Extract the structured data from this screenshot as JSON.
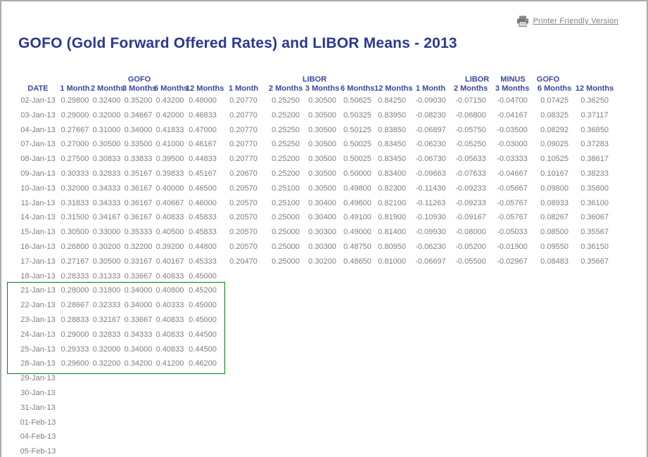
{
  "page": {
    "title": "GOFO (Gold Forward Offered Rates) and LIBOR Means - 2013",
    "printer_link_label": "Printer Friendly Version"
  },
  "colors": {
    "title_blue": "#2a3890",
    "header_blue": "#3a46a0",
    "data_gray": "#7f7f7f",
    "link_gray": "#808080",
    "highlight_green": "#0e7e10",
    "page_border_gray": "#aaaaaa"
  },
  "table": {
    "groups": [
      "GOFO",
      "LIBOR",
      "LIBOR MINUS GOFO"
    ],
    "sub_headers": [
      "DATE",
      "1 Month",
      "2 Months",
      "3 Months",
      "6 Months",
      "12 Months",
      "1 Month",
      "2 Months",
      "3 Months",
      "6 Months",
      "12 Months",
      "1 Month",
      "2 Months",
      "3 Months",
      "6 Months",
      "12 Months"
    ],
    "highlight": {
      "start_date": "21-Jan-13",
      "end_date": "28-Jan-13"
    },
    "rows": [
      {
        "date": "02-Jan-13",
        "values": [
          "0.29800",
          "0.32400",
          "0.35200",
          "0.43200",
          "0.48000",
          "0.20770",
          "0.25250",
          "0.30500",
          "0.50625",
          "0.84250",
          "-0.09030",
          "-0.07150",
          "-0.04700",
          "0.07425",
          "0.36250"
        ]
      },
      {
        "date": "03-Jan-13",
        "values": [
          "0.29000",
          "0.32000",
          "0.34667",
          "0.42000",
          "0.46833",
          "0.20770",
          "0.25200",
          "0.30500",
          "0.50325",
          "0.83950",
          "-0.08230",
          "-0.06800",
          "-0.04167",
          "0.08325",
          "0.37117"
        ]
      },
      {
        "date": "04-Jan-13",
        "values": [
          "0.27667",
          "0.31000",
          "0.34000",
          "0.41833",
          "0.47000",
          "0.20770",
          "0.25250",
          "0.30500",
          "0.50125",
          "0.83850",
          "-0.06897",
          "-0.05750",
          "-0.03500",
          "0.08292",
          "0.36850"
        ]
      },
      {
        "date": "07-Jan-13",
        "values": [
          "0.27000",
          "0.30500",
          "0.33500",
          "0.41000",
          "0.46167",
          "0.20770",
          "0.25250",
          "0.30500",
          "0.50025",
          "0.83450",
          "-0.06230",
          "-0.05250",
          "-0.03000",
          "0.09025",
          "0.37283"
        ]
      },
      {
        "date": "08-Jan-13",
        "values": [
          "0.27500",
          "0.30833",
          "0.33833",
          "0.39500",
          "0.44833",
          "0.20770",
          "0.25200",
          "0.30500",
          "0.50025",
          "0.83450",
          "-0.06730",
          "-0.05633",
          "-0.03333",
          "0.10525",
          "0.38617"
        ]
      },
      {
        "date": "09-Jan-13",
        "values": [
          "0.30333",
          "0.32833",
          "0.35167",
          "0.39833",
          "0.45167",
          "0.20670",
          "0.25200",
          "0.30500",
          "0.50000",
          "0.83400",
          "-0.09663",
          "-0.07633",
          "-0.04667",
          "0.10167",
          "0.38233"
        ]
      },
      {
        "date": "10-Jan-13",
        "values": [
          "0.32000",
          "0.34333",
          "0.36167",
          "0.40000",
          "0.46500",
          "0.20570",
          "0.25100",
          "0.30500",
          "0.49800",
          "0.82300",
          "-0.11430",
          "-0.09233",
          "-0.05667",
          "0.09800",
          "0.35800"
        ]
      },
      {
        "date": "11-Jan-13",
        "values": [
          "0.31833",
          "0.34333",
          "0.36167",
          "0.40667",
          "0.46000",
          "0.20570",
          "0.25100",
          "0.30400",
          "0.49600",
          "0.82100",
          "-0.11263",
          "-0.09233",
          "-0.05767",
          "0.08933",
          "0.36100"
        ]
      },
      {
        "date": "14-Jan-13",
        "values": [
          "0.31500",
          "0.34167",
          "0.36167",
          "0.40833",
          "0.45833",
          "0.20570",
          "0.25000",
          "0.30400",
          "0.49100",
          "0.81900",
          "-0.10930",
          "-0.09167",
          "-0.05767",
          "0.08267",
          "0.36067"
        ]
      },
      {
        "date": "15-Jan-13",
        "values": [
          "0.30500",
          "0.33000",
          "0.35333",
          "0.40500",
          "0.45833",
          "0.20570",
          "0.25000",
          "0.30300",
          "0.49000",
          "0.81400",
          "-0.09930",
          "-0.08000",
          "-0.05033",
          "0.08500",
          "0.35567"
        ]
      },
      {
        "date": "16-Jan-13",
        "values": [
          "0.26800",
          "0.30200",
          "0.32200",
          "0.39200",
          "0.44800",
          "0.20570",
          "0.25000",
          "0.30300",
          "0.48750",
          "0.80950",
          "-0.06230",
          "-0.05200",
          "-0.01900",
          "0.09550",
          "0.36150"
        ]
      },
      {
        "date": "17-Jan-13",
        "values": [
          "0.27167",
          "0.30500",
          "0.33167",
          "0.40167",
          "0.45333",
          "0.20470",
          "0.25000",
          "0.30200",
          "0.48650",
          "0.81000",
          "-0.06697",
          "-0.05500",
          "-0.02967",
          "0.08483",
          "0.35667"
        ]
      },
      {
        "date": "18-Jan-13",
        "values": [
          "0.28333",
          "0.31333",
          "0.33667",
          "0.40833",
          "0.45000",
          "",
          "",
          "",
          "",
          "",
          "",
          "",
          "",
          "",
          ""
        ]
      },
      {
        "date": "21-Jan-13",
        "values": [
          "0.28000",
          "0.31800",
          "0.34000",
          "0.40800",
          "0.45200",
          "",
          "",
          "",
          "",
          "",
          "",
          "",
          "",
          "",
          ""
        ]
      },
      {
        "date": "22-Jan-13",
        "values": [
          "0.28667",
          "0.32333",
          "0.34000",
          "0.40333",
          "0.45000",
          "",
          "",
          "",
          "",
          "",
          "",
          "",
          "",
          "",
          ""
        ]
      },
      {
        "date": "23-Jan-13",
        "values": [
          "0.28833",
          "0.32167",
          "0.33667",
          "0.40833",
          "0.45000",
          "",
          "",
          "",
          "",
          "",
          "",
          "",
          "",
          "",
          ""
        ]
      },
      {
        "date": "24-Jan-13",
        "values": [
          "0.29000",
          "0.32833",
          "0.34333",
          "0.40833",
          "0.44500",
          "",
          "",
          "",
          "",
          "",
          "",
          "",
          "",
          "",
          ""
        ]
      },
      {
        "date": "25-Jan-13",
        "values": [
          "0.29333",
          "0.32000",
          "0.34000",
          "0.40833",
          "0.44500",
          "",
          "",
          "",
          "",
          "",
          "",
          "",
          "",
          "",
          ""
        ]
      },
      {
        "date": "28-Jan-13",
        "values": [
          "0.29600",
          "0.32200",
          "0.34200",
          "0.41200",
          "0.46200",
          "",
          "",
          "",
          "",
          "",
          "",
          "",
          "",
          "",
          ""
        ]
      },
      {
        "date": "29-Jan-13",
        "values": []
      },
      {
        "date": "30-Jan-13",
        "values": []
      },
      {
        "date": "31-Jan-13",
        "values": []
      },
      {
        "date": "01-Feb-13",
        "values": []
      },
      {
        "date": "04-Feb-13",
        "values": []
      },
      {
        "date": "05-Feb-13",
        "values": []
      }
    ]
  }
}
